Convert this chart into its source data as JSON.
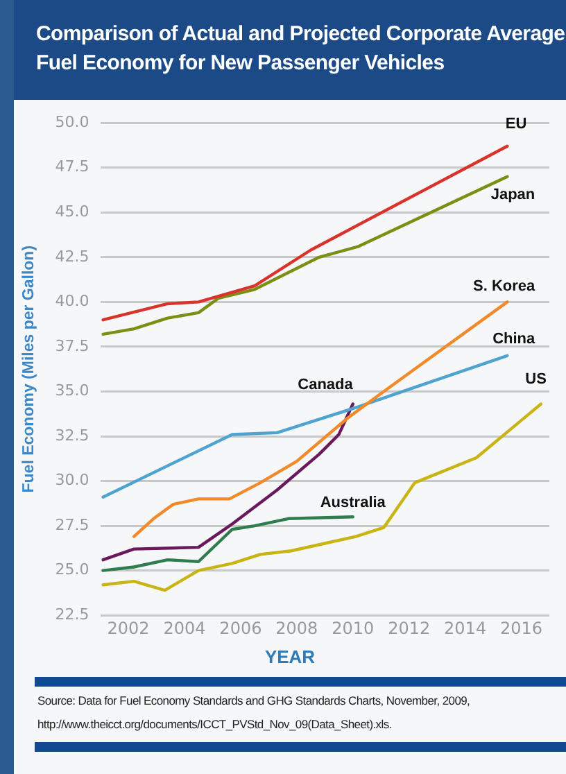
{
  "chart_data": {
    "type": "line",
    "title": "Comparison of Actual and Projected Corporate Average Fuel Economy for New Passenger Vehicles",
    "xlabel": "YEAR",
    "ylabel": "Fuel Economy (Miles per Gallon)",
    "xlim": [
      2001,
      2017
    ],
    "xticks": [
      2002,
      2004,
      2006,
      2008,
      2010,
      2012,
      2014,
      2016
    ],
    "ylim": [
      22.5,
      50
    ],
    "yticks": [
      {
        "value": 22.5,
        "label": "22.5"
      },
      {
        "value": 25,
        "label": "25.0"
      },
      {
        "value": 27.5,
        "label": "27.5"
      },
      {
        "value": 30,
        "label": "30.0"
      },
      {
        "value": 32.5,
        "label": "32.5"
      },
      {
        "value": 35,
        "label": "35.0"
      },
      {
        "value": 37.5,
        "label": "37.5"
      },
      {
        "value": 40,
        "label": "40.0"
      },
      {
        "value": 42.5,
        "label": "42.5"
      },
      {
        "value": 45,
        "label": "45.0"
      },
      {
        "value": 47.5,
        "label": "47.5"
      },
      {
        "value": 50,
        "label": "50.0"
      }
    ],
    "grid": "y",
    "legend": false,
    "marker": "none",
    "line_style": "solid",
    "series": [
      {
        "name": "EU",
        "color": "#d9342b",
        "x": [
          2001.1,
          2003.4,
          2004.5,
          2006.5,
          2008.5,
          2015.5
        ],
        "values": [
          39.0,
          39.9,
          40.0,
          40.9,
          42.9,
          48.7
        ]
      },
      {
        "name": "Japan",
        "color": "#7a8f14",
        "x": [
          2001.1,
          2002.2,
          2003.4,
          2004.5,
          2005.2,
          2006.5,
          2008.8,
          2010.2,
          2015.5
        ],
        "values": [
          38.2,
          38.5,
          39.1,
          39.4,
          40.2,
          40.7,
          42.5,
          43.1,
          47.0
        ]
      },
      {
        "name": "S. Korea",
        "color": "#f08a2a",
        "x": [
          2002.2,
          2002.9,
          2003.6,
          2004.5,
          2005.6,
          2006.7,
          2008.0,
          2009.8,
          2011.1,
          2015.5
        ],
        "values": [
          26.9,
          27.9,
          28.7,
          29.0,
          29.0,
          29.9,
          31.1,
          33.5,
          35.0,
          40.0
        ]
      },
      {
        "name": "China",
        "color": "#4fa3d1",
        "x": [
          2001.1,
          2005.7,
          2007.3,
          2010.1,
          2011.4,
          2015.5
        ],
        "values": [
          29.1,
          32.6,
          32.7,
          34.1,
          34.8,
          37.0
        ]
      },
      {
        "name": "Canada",
        "color": "#6a1a5c",
        "x": [
          2001.1,
          2002.2,
          2004.5,
          2005.7,
          2007.3,
          2008.8,
          2009.5,
          2010.0
        ],
        "values": [
          25.6,
          26.2,
          26.3,
          27.6,
          29.5,
          31.5,
          32.6,
          34.3
        ]
      },
      {
        "name": "Australia",
        "color": "#2f7d4f",
        "x": [
          2001.1,
          2002.2,
          2003.4,
          2004.5,
          2005.7,
          2006.5,
          2007.7,
          2010.0
        ],
        "values": [
          25.0,
          25.2,
          25.6,
          25.5,
          27.3,
          27.5,
          27.9,
          28.0
        ]
      },
      {
        "name": "US",
        "color": "#c8b414",
        "x": [
          2001.1,
          2002.2,
          2003.3,
          2004.5,
          2005.7,
          2006.7,
          2007.8,
          2010.1,
          2011.1,
          2012.2,
          2014.4,
          2016.7
        ],
        "values": [
          24.2,
          24.4,
          23.9,
          25.0,
          25.4,
          25.9,
          26.1,
          26.9,
          27.4,
          29.9,
          31.3,
          34.3
        ]
      }
    ],
    "annotations": [
      "Source: Data for Fuel Economy Standards and GHG Standards Charts, November, 2009,",
      "http://www.theicct.org/documents/ICCT_PVStd_Nov_09(Data_Sheet).xls."
    ]
  }
}
